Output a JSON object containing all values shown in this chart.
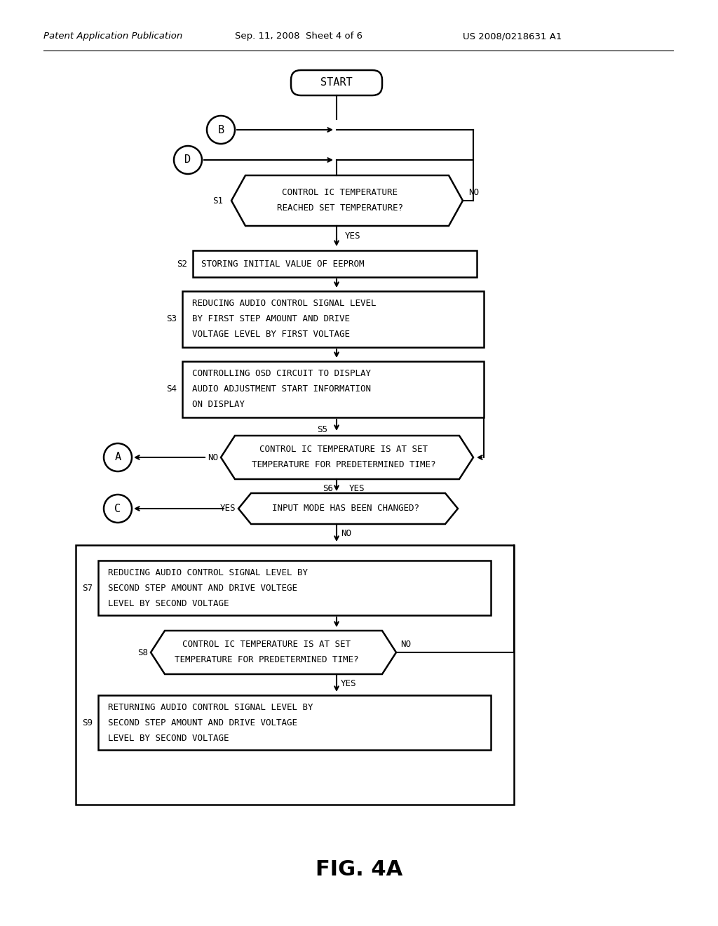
{
  "title": "FIG. 4A",
  "header_left": "Patent Application Publication",
  "header_mid": "Sep. 11, 2008  Sheet 4 of 6",
  "header_right": "US 2008/0218631 A1",
  "bg_color": "#ffffff",
  "font_family": "monospace"
}
